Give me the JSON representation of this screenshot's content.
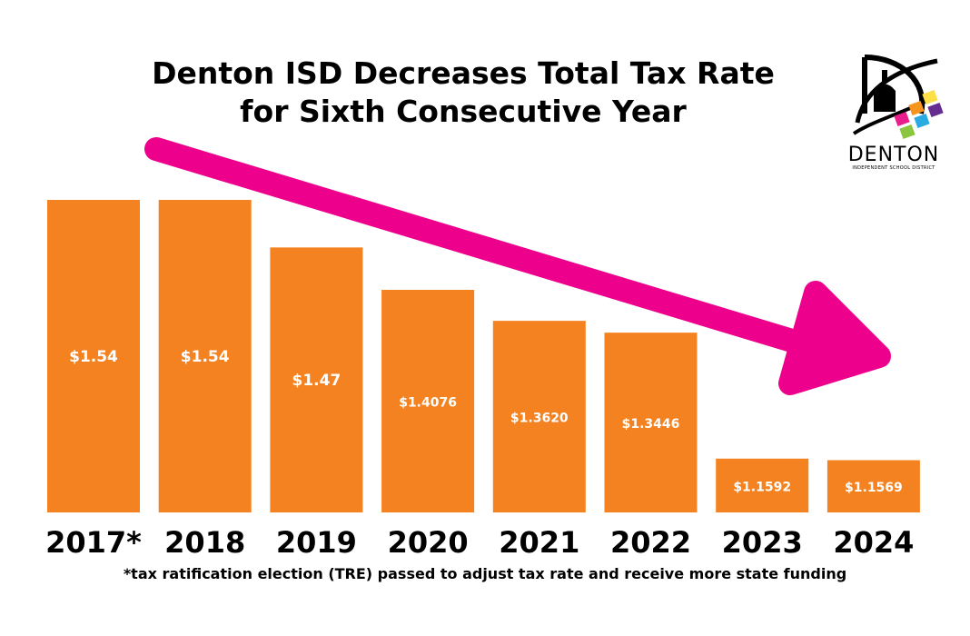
{
  "title": {
    "line1": "Denton ISD Decreases Total Tax Rate",
    "line2": "for Sixth Consecutive Year"
  },
  "logo": {
    "name": "DENTON",
    "subtitle": "INDEPENDENT SCHOOL DISTRICT"
  },
  "footnote": "*tax ratification election (TRE) passed to adjust tax rate and receive more state funding",
  "colors": {
    "bar": "#f58220",
    "arrow": "#ec008c",
    "label": "#ffffff",
    "text": "#000000"
  },
  "chart_data": {
    "type": "bar",
    "title": "Denton ISD Decreases Total Tax Rate for Sixth Consecutive Year",
    "categories": [
      "2017*",
      "2018",
      "2019",
      "2020",
      "2021",
      "2022",
      "2023",
      "2024"
    ],
    "values": [
      1.54,
      1.54,
      1.47,
      1.4076,
      1.362,
      1.3446,
      1.1592,
      1.1569
    ],
    "data_labels": [
      "$1.54",
      "$1.54",
      "$1.47",
      "$1.4076",
      "$1.3620",
      "$1.3446",
      "$1.1592",
      "$1.1569"
    ],
    "xlabel": "",
    "ylabel": "",
    "ylim": [
      1.08,
      1.54
    ],
    "grid": false,
    "legend": "none",
    "annotations": [
      "downward trend arrow"
    ]
  }
}
